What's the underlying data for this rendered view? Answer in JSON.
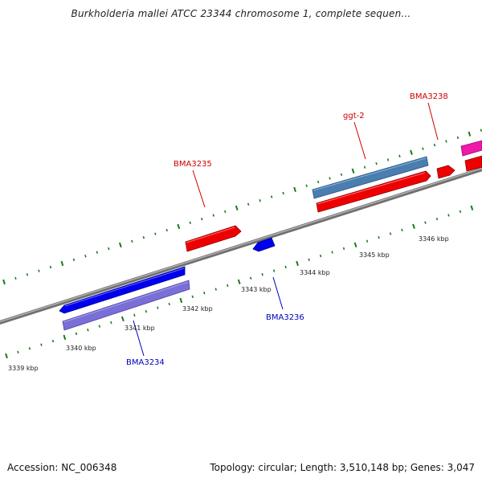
{
  "title": "Burkholderia mallei ATCC 23344 chromosome 1, complete sequen...",
  "footer": {
    "accession": "Accession: NC_006348",
    "summary": "Topology: circular; Length: 3,510,148 bp; Genes: 3,047"
  },
  "colors": {
    "backbone": "#7f7f7f",
    "ticks": "#1a7a1a",
    "label_red": "#cc0000",
    "label_blue": "#0000bb"
  },
  "ruler": {
    "labels": [
      "3339 kbp",
      "3340 kbp",
      "3341 kbp",
      "3342 kbp",
      "3343 kbp",
      "3344 kbp",
      "3345 kbp",
      "3346 kbp"
    ]
  },
  "gene_labels": [
    {
      "text": "BMA3235",
      "color": "#cc0000"
    },
    {
      "text": "ggt-2",
      "color": "#cc0000"
    },
    {
      "text": "BMA3238",
      "color": "#cc0000"
    },
    {
      "text": "BMA3236",
      "color": "#0000bb"
    },
    {
      "text": "BMA3234",
      "color": "#0000bb"
    }
  ]
}
